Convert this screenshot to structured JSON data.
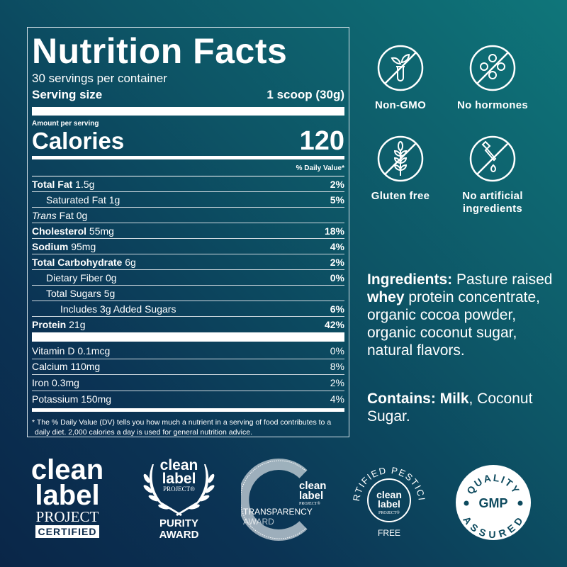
{
  "nutrition": {
    "title": "Nutrition Facts",
    "servings": "30 servings per container",
    "serving_size_label": "Serving size",
    "serving_size_value": "1 scoop (30g)",
    "amount_per_serving": "Amount per serving",
    "calories_label": "Calories",
    "calories_value": "120",
    "dv_header": "% Daily Value*",
    "rows": [
      {
        "bold": "Total Fat",
        "amount": " 1.5g",
        "dv": "2%"
      },
      {
        "bold": "",
        "amount": "Saturated Fat 1g",
        "dv": "5%"
      },
      {
        "italic": "Trans",
        "amount": " Fat 0g",
        "dv": ""
      },
      {
        "bold": "Cholesterol",
        "amount": " 55mg",
        "dv": "18%"
      },
      {
        "bold": "Sodium",
        "amount": " 95mg",
        "dv": "4%"
      },
      {
        "bold": "Total Carbohydrate",
        "amount": " 6g",
        "dv": "2%"
      },
      {
        "bold": "",
        "amount": "Dietary Fiber 0g",
        "dv": "0%"
      },
      {
        "bold": "",
        "amount": "Total Sugars 5g",
        "dv": ""
      },
      {
        "bold": "",
        "amount": "Includes 3g Added Sugars",
        "dv": "6%"
      },
      {
        "bold": "Protein",
        "amount": " 21g",
        "dv": "42%"
      }
    ],
    "vitamins": [
      {
        "name": "Vitamin D 0.1mcg",
        "dv": "0%"
      },
      {
        "name": "Calcium 110mg",
        "dv": "8%"
      },
      {
        "name": "Iron 0.3mg",
        "dv": "2%"
      },
      {
        "name": "Potassium 150mg",
        "dv": "4%"
      }
    ],
    "footnote": "* The % Daily Value (DV) tells you how much a nutrient in a serving of food contributes to a daily diet. 2,000 calories a day is used for general nutrition advice."
  },
  "claims": [
    {
      "label": "Non-GMO",
      "icon": "no-gmo-icon"
    },
    {
      "label": "No hormones",
      "icon": "no-hormones-icon"
    },
    {
      "label": "Gluten free",
      "icon": "gluten-free-icon"
    },
    {
      "label": "No artificial ingredients",
      "icon": "no-artificial-icon"
    }
  ],
  "ingredients": {
    "label": "Ingredients:",
    "text1": " Pasture raised ",
    "bold2": "whey",
    "text2": " protein concentrate, organic cocoa powder, organic coconut sugar, natural flavors."
  },
  "contains": {
    "label": "Contains:",
    "bold": " Milk",
    "text": ", Coconut Sugar."
  },
  "badges": {
    "clp_certified": {
      "l1": "clean",
      "l2": "label",
      "l3": "PROJECT",
      "l4": "CERTIFIED"
    },
    "purity": {
      "l1": "clean",
      "l2": "label",
      "l3": "PROJECT®",
      "l4": "PURITY",
      "l5": "AWARD"
    },
    "transparency": {
      "l1": "clean",
      "l2": "label",
      "l3": "PROJECT®",
      "l4": "TRANSPARENCY",
      "l5": "AWARD"
    },
    "pesticide": {
      "ring_top": "CERTIFIED PESTICIDE",
      "ring_bottom": "FREE",
      "l1": "clean",
      "l2": "label",
      "l3": "PROJECT®"
    },
    "gmp": {
      "top": "QUALITY",
      "mid": "GMP",
      "bottom": "ASSURED"
    }
  },
  "colors": {
    "bg_top_right": "#0f767a",
    "bg_bottom_left": "#0a2648",
    "fg": "#ffffff"
  }
}
